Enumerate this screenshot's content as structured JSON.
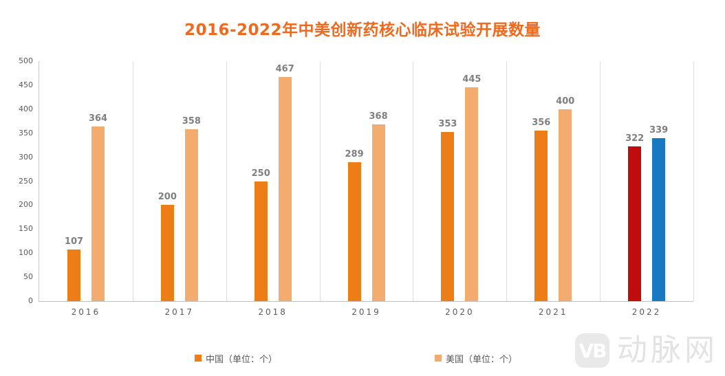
{
  "title": "2016-2022年中美创新药核心临床试验开展数量",
  "title_color": "#ED6A1E",
  "chart_data": {
    "type": "bar",
    "title": "2016-2022年中美创新药核心临床试验开展数量",
    "categories": [
      "2016",
      "2017",
      "2018",
      "2019",
      "2020",
      "2021",
      "2022"
    ],
    "series": [
      {
        "name": "中国（单位：个）",
        "values": [
          107,
          200,
          250,
          289,
          353,
          356,
          322
        ],
        "color": "#ED7D17",
        "point_colors": {
          "2022": "#C00C0C"
        }
      },
      {
        "name": "美国（单位：个）",
        "values": [
          364,
          358,
          467,
          368,
          445,
          400,
          339
        ],
        "color": "#F4AC6E",
        "point_colors": {
          "2022": "#1779C2"
        }
      }
    ],
    "ylim": [
      0,
      500
    ],
    "ytick_step": 50,
    "grid": "vertical-separators-only",
    "legend_position": "bottom",
    "value_labels": "above-bars"
  },
  "legend": {
    "china_label": "中国（单位：个）",
    "us_label": "美国（单位：个）"
  },
  "watermark": {
    "logo": "VB",
    "text": "动脉网"
  }
}
